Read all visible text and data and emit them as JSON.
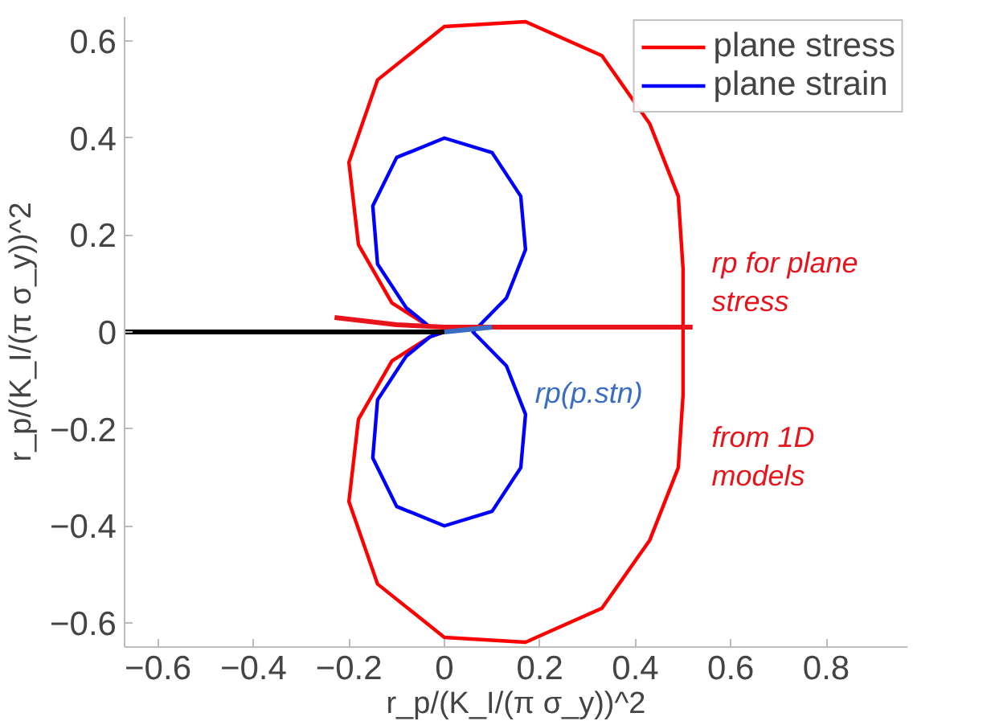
{
  "chart_data": {
    "type": "line",
    "xlabel": "r_p/(K_I/(π σ_y))^2",
    "ylabel": "r_p/(K_I/(π σ_y))^2",
    "xlim": [
      -0.67,
      0.97
    ],
    "ylim": [
      -0.65,
      0.65
    ],
    "xticks": [
      {
        "value": -0.6,
        "label": "−0.6"
      },
      {
        "value": -0.4,
        "label": "−0.4"
      },
      {
        "value": -0.2,
        "label": "−0.2"
      },
      0,
      0.2,
      0.4,
      0.6,
      0.8
    ],
    "yticks": [
      {
        "value": -0.6,
        "label": "−0.6"
      },
      {
        "value": -0.4,
        "label": "−0.4"
      },
      {
        "value": -0.2,
        "label": "−0.2"
      },
      0,
      0.2,
      0.4,
      0.6
    ],
    "grid": false,
    "legend": "top right",
    "marker": "none",
    "line_style": "solid",
    "series": [
      {
        "name": "plane stress",
        "color": "#ff0000",
        "x": [
          0,
          -0.03,
          -0.11,
          -0.18,
          -0.2,
          -0.14,
          0,
          0.17,
          0.33,
          0.43,
          0.49,
          0.5,
          0.5,
          0.5,
          0.49,
          0.43,
          0.33,
          0.17,
          0,
          -0.14,
          -0.2,
          -0.18,
          -0.11,
          -0.03
        ],
        "values": [
          0,
          -0.01,
          -0.06,
          -0.18,
          -0.35,
          -0.52,
          -0.63,
          -0.64,
          -0.57,
          -0.43,
          -0.28,
          -0.13,
          0,
          0.13,
          0.28,
          0.43,
          0.57,
          0.64,
          0.63,
          0.52,
          0.35,
          0.18,
          0.06,
          0.01
        ]
      },
      {
        "name": "plane strain",
        "color": "#0000ff",
        "x": [
          0,
          -0.03,
          -0.08,
          -0.14,
          -0.15,
          -0.1,
          0,
          0.1,
          0.16,
          0.17,
          0.13,
          0.08,
          0.06,
          0.08,
          0.13,
          0.17,
          0.16,
          0.1,
          0,
          -0.1,
          -0.15,
          -0.14,
          -0.08,
          -0.03
        ],
        "values": [
          0,
          -0.01,
          -0.05,
          -0.14,
          -0.26,
          -0.36,
          -0.4,
          -0.37,
          -0.28,
          -0.17,
          -0.07,
          -0.02,
          0,
          0.02,
          0.07,
          0.17,
          0.28,
          0.37,
          0.4,
          0.36,
          0.26,
          0.14,
          0.05,
          0.01
        ]
      },
      {
        "color": "#000000",
        "x": [
          -0.67,
          0
        ],
        "values": [
          0,
          0
        ]
      },
      {
        "color": "#e8141c",
        "x": [
          -0.23,
          -0.1,
          0.0,
          0.2,
          0.52
        ],
        "values": [
          0.03,
          0.015,
          0.01,
          0.01,
          0.01
        ]
      },
      {
        "color": "#3a6cc4",
        "x": [
          0.0,
          0.1
        ],
        "values": [
          0.0,
          0.01
        ]
      }
    ],
    "annotations": [
      "rp for plane stress",
      "rp(p.stn)",
      "from 1D models"
    ]
  }
}
